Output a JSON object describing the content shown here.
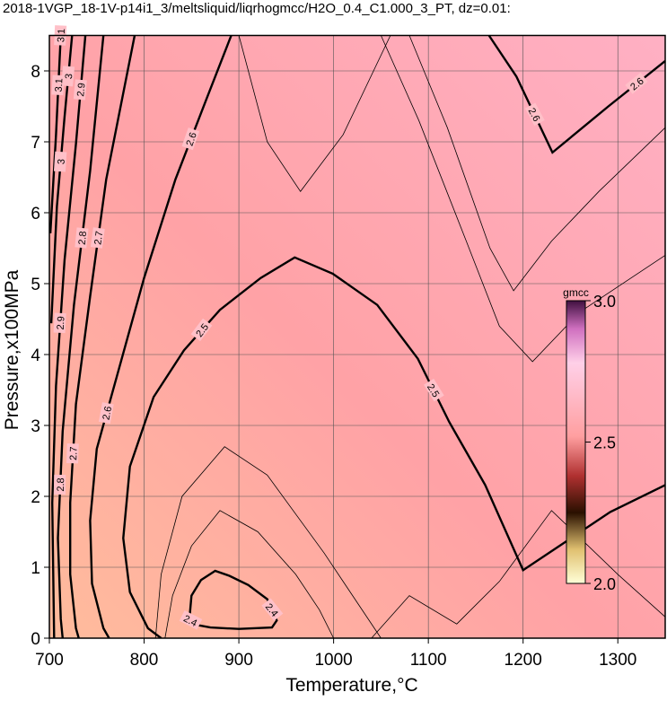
{
  "chart_data": {
    "type": "contour",
    "title": "2018-1VGP_18-1V-p14i1_3/meltsliquid/liqrhogmcc/H2O_0.4_C1.000_3_PT, dz=0.01:",
    "x_label": "Temperature,°C",
    "y_label": "Pressure,x100MPa",
    "xlim": [
      700,
      1350
    ],
    "ylim": [
      0,
      8.5
    ],
    "xticks": [
      700,
      800,
      900,
      1000,
      1100,
      1200,
      1300
    ],
    "yticks": [
      0,
      1,
      2,
      3,
      4,
      5,
      6,
      7,
      8
    ],
    "grid": true,
    "colorbar": {
      "label": "gmcc",
      "clim": [
        2.0,
        3.0
      ],
      "ticks": [
        {
          "value": 3.0,
          "label": "3.0"
        },
        {
          "value": 2.5,
          "label": "2.5"
        },
        {
          "value": 2.0,
          "label": "2.0"
        }
      ]
    },
    "contours": [
      {
        "level": 2.4,
        "bold": true,
        "x": [
          848,
          850,
          860,
          875,
          890,
          910,
          930,
          940,
          935,
          900,
          870,
          850,
          848
        ],
        "y": [
          0.3,
          0.6,
          0.82,
          0.95,
          0.88,
          0.75,
          0.55,
          0.25,
          0.15,
          0.13,
          0.15,
          0.2,
          0.3
        ]
      },
      {
        "level": 2.5,
        "bold": true,
        "x": [
          818,
          804,
          785,
          778,
          785,
          810,
          842,
          880,
          923,
          959,
          999,
          1046,
          1089,
          1122,
          1160,
          1200,
          1236,
          1292,
          1350
        ],
        "y": [
          0,
          0.14,
          0.65,
          1.41,
          2.42,
          3.4,
          4.06,
          4.63,
          5.08,
          5.37,
          5.14,
          4.7,
          3.94,
          3.05,
          2.16,
          0.96,
          1.28,
          1.78,
          2.16
        ]
      },
      {
        "level": 2.6,
        "bold": true,
        "x": [
          763,
          757,
          745,
          743,
          750,
          771,
          800,
          833,
          866,
          892
        ],
        "y": [
          0,
          0.14,
          0.77,
          1.66,
          2.67,
          3.68,
          5.08,
          6.47,
          7.61,
          8.5
        ]
      },
      {
        "level": 2.6,
        "bold": true,
        "x": [
          1164,
          1193,
          1231,
          1290,
          1350
        ],
        "y": [
          8.5,
          7.92,
          6.85,
          7.5,
          8.14
        ]
      },
      {
        "level": 2.7,
        "bold": true,
        "x": [
          731,
          728,
          722,
          722,
          728,
          743,
          760,
          790
        ],
        "y": [
          0,
          0.14,
          0.9,
          1.91,
          3.3,
          4.82,
          6.47,
          8.5
        ]
      },
      {
        "level": 2.8,
        "bold": true,
        "x": [
          714,
          712,
          709,
          714,
          726,
          743,
          757
        ],
        "y": [
          0,
          0.27,
          1.41,
          2.92,
          4.7,
          6.59,
          8.5
        ]
      },
      {
        "level": 2.9,
        "bold": true,
        "x": [
          705,
          703,
          707,
          716,
          728,
          738
        ],
        "y": [
          0,
          1.91,
          3.56,
          5.33,
          6.97,
          8.5
        ]
      },
      {
        "level": 3,
        "bold": true,
        "x": [
          702,
          708,
          716,
          724
        ],
        "y": [
          4.44,
          6.09,
          7.35,
          8.5
        ]
      },
      {
        "level": 3.1,
        "bold": true,
        "x": [
          701,
          707,
          712
        ],
        "y": [
          5.71,
          7.1,
          8.5
        ]
      },
      {
        "level": 2.45,
        "bold": false,
        "x": [
          822,
          830,
          850,
          880,
          920,
          960,
          985,
          1000
        ],
        "y": [
          0,
          0.6,
          1.3,
          1.8,
          1.5,
          0.9,
          0.4,
          0
        ]
      },
      {
        "level": 2.47,
        "bold": false,
        "x": [
          812,
          818,
          840,
          885,
          930,
          990,
          1030,
          1050
        ],
        "y": [
          0,
          0.9,
          2.0,
          2.7,
          2.3,
          1.2,
          0.4,
          0
        ]
      },
      {
        "level": 2.55,
        "bold": false,
        "x": [
          900,
          930,
          965,
          1010,
          1060
        ],
        "y": [
          8.5,
          7.0,
          6.3,
          7.1,
          8.5
        ]
      },
      {
        "level": 2.56,
        "bold": false,
        "x": [
          1040,
          1080,
          1130,
          1175,
          1230,
          1300,
          1350
        ],
        "y": [
          0,
          0.6,
          0.2,
          0.8,
          1.8,
          0.9,
          0.3
        ]
      },
      {
        "level": 2.57,
        "bold": false,
        "x": [
          1080,
          1120,
          1165,
          1190,
          1230,
          1280,
          1350
        ],
        "y": [
          8.5,
          7.2,
          5.5,
          4.9,
          5.6,
          6.3,
          7.2
        ]
      },
      {
        "level": 2.58,
        "bold": false,
        "x": [
          1050,
          1090,
          1140,
          1175,
          1210,
          1260,
          1350
        ],
        "y": [
          8.5,
          7.3,
          5.6,
          4.4,
          3.9,
          4.6,
          5.4
        ]
      }
    ]
  }
}
